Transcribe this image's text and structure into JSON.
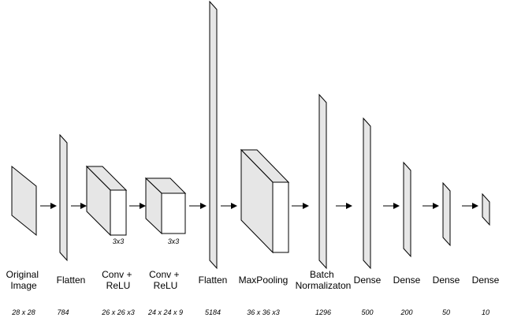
{
  "colors": {
    "shape_fill": "#e6e6e6",
    "box_front": "#ffffff",
    "stroke": "#000000",
    "text": "#000000"
  },
  "layers": [
    {
      "id": "original-image",
      "label_lines": [
        "Original",
        "Image"
      ],
      "dim": "28 x 28"
    },
    {
      "id": "flatten-1",
      "label_lines": [
        "Flatten"
      ],
      "dim": "784"
    },
    {
      "id": "conv-relu-1",
      "label_lines": [
        "Conv +",
        "ReLU"
      ],
      "dim": "26 x 26 x3",
      "kernel": "3x3"
    },
    {
      "id": "conv-relu-2",
      "label_lines": [
        "Conv +",
        "ReLU"
      ],
      "dim": "24 x 24 x 9",
      "kernel": "3x3"
    },
    {
      "id": "flatten-2",
      "label_lines": [
        "Flatten"
      ],
      "dim": "5184"
    },
    {
      "id": "maxpooling",
      "label_lines": [
        "MaxPooling"
      ],
      "dim": "36 x 36 x3"
    },
    {
      "id": "batch-normalization",
      "label_lines": [
        "Batch",
        "Normalizaton"
      ],
      "dim": "1296"
    },
    {
      "id": "dense-1",
      "label_lines": [
        "Dense"
      ],
      "dim": "500"
    },
    {
      "id": "dense-2",
      "label_lines": [
        "Dense"
      ],
      "dim": "200"
    },
    {
      "id": "dense-3",
      "label_lines": [
        "Dense"
      ],
      "dim": "50"
    },
    {
      "id": "dense-4",
      "label_lines": [
        "Dense"
      ],
      "dim": "10"
    }
  ]
}
